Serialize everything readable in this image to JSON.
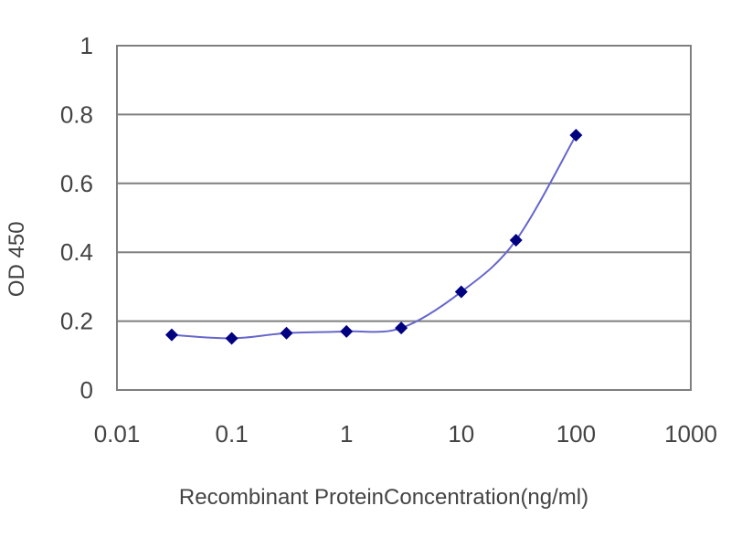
{
  "chart_data": {
    "type": "line",
    "title": "",
    "xlabel": "Recombinant ProteinConcentration(ng/ml)",
    "ylabel": "OD 450",
    "xscale": "log",
    "xlim": [
      0.01,
      1000
    ],
    "ylim": [
      0,
      1
    ],
    "xticks": [
      "0.01",
      "0.1",
      "1",
      "10",
      "100",
      "1000"
    ],
    "yticks": [
      "0",
      "0.2",
      "0.4",
      "0.6",
      "0.8",
      "1"
    ],
    "grid": "horizontal",
    "legend": "none",
    "series": [
      {
        "x": [
          0.03,
          0.1,
          0.3,
          1,
          3,
          10,
          30,
          100
        ],
        "y": [
          0.16,
          0.15,
          0.165,
          0.17,
          0.18,
          0.285,
          0.435,
          0.74
        ],
        "line_color": "#6666cc",
        "marker_color": "#000080",
        "marker": "diamond"
      }
    ],
    "plot_background": "#ffffff",
    "gridline_color": "#7f7f7f"
  }
}
